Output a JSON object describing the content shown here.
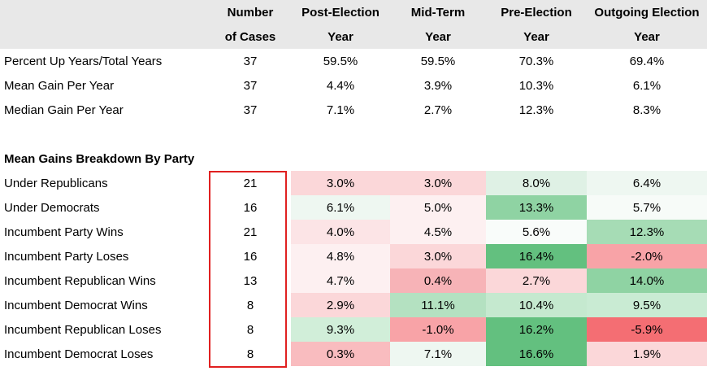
{
  "header": {
    "line1": [
      "",
      "Number",
      "Post-Election",
      "Mid-Term",
      "Pre-Election",
      "Outgoing Election"
    ],
    "line2": [
      "",
      "of Cases",
      "Year",
      "Year",
      "Year",
      "Year"
    ]
  },
  "summary_rows": [
    {
      "label": "Percent Up Years/Total Years",
      "cases": "37",
      "post": "59.5%",
      "mid": "59.5%",
      "pre": "70.3%",
      "out": "69.4%"
    },
    {
      "label": "Mean Gain Per Year",
      "cases": "37",
      "post": "4.4%",
      "mid": "3.9%",
      "pre": "10.3%",
      "out": "6.1%"
    },
    {
      "label": "Median Gain Per Year",
      "cases": "37",
      "post": "7.1%",
      "mid": "2.7%",
      "pre": "12.3%",
      "out": "8.3%"
    }
  ],
  "section_title": "Mean Gains Breakdown By Party",
  "party_rows": [
    {
      "label": "Under Republicans",
      "cases": "21",
      "post": "3.0%",
      "mid": "3.0%",
      "pre": "8.0%",
      "out": "6.4%",
      "colors": [
        "#fbd7d9",
        "#fbd7d9",
        "#dff1e5",
        "#eef7f1"
      ]
    },
    {
      "label": "Under Democrats",
      "cases": "16",
      "post": "6.1%",
      "mid": "5.0%",
      "pre": "13.3%",
      "out": "5.7%",
      "colors": [
        "#eef7f1",
        "#fdf0f1",
        "#8fd3a3",
        "#f7fbf8"
      ]
    },
    {
      "label": "Incumbent Party Wins",
      "cases": "21",
      "post": "4.0%",
      "mid": "4.5%",
      "pre": "5.6%",
      "out": "12.3%",
      "colors": [
        "#fce4e6",
        "#fdf0f1",
        "#f9fcfa",
        "#a6dcb5"
      ]
    },
    {
      "label": "Incumbent Party Loses",
      "cases": "16",
      "post": "4.8%",
      "mid": "3.0%",
      "pre": "16.4%",
      "out": "-2.0%",
      "colors": [
        "#fdf0f1",
        "#fbd7d9",
        "#63c07f",
        "#f8a3a7"
      ]
    },
    {
      "label": "Incumbent Republican Wins",
      "cases": "13",
      "post": "4.7%",
      "mid": "0.4%",
      "pre": "2.7%",
      "out": "14.0%",
      "colors": [
        "#fdf0f1",
        "#f7b3b7",
        "#fbd7d9",
        "#8fd3a3"
      ]
    },
    {
      "label": "Incumbent Democrat Wins",
      "cases": "8",
      "post": "2.9%",
      "mid": "11.1%",
      "pre": "10.4%",
      "out": "9.5%",
      "colors": [
        "#fbd7d9",
        "#b4e1c1",
        "#c5e9cf",
        "#c9ebd3"
      ]
    },
    {
      "label": "Incumbent Republican Loses",
      "cases": "8",
      "post": "9.3%",
      "mid": "-1.0%",
      "pre": "16.2%",
      "out": "-5.9%",
      "colors": [
        "#d1eed9",
        "#f8a3a7",
        "#63c07f",
        "#f46e73"
      ]
    },
    {
      "label": "Incumbent Democrat Loses",
      "cases": "8",
      "post": "0.3%",
      "mid": "7.1%",
      "pre": "16.6%",
      "out": "1.9%",
      "colors": [
        "#f9bcbf",
        "#eef7f1",
        "#63c07f",
        "#fbd7d9"
      ]
    }
  ],
  "colors": {
    "header_bg": "#e8e8e8",
    "highlight_border": "#e02020"
  }
}
